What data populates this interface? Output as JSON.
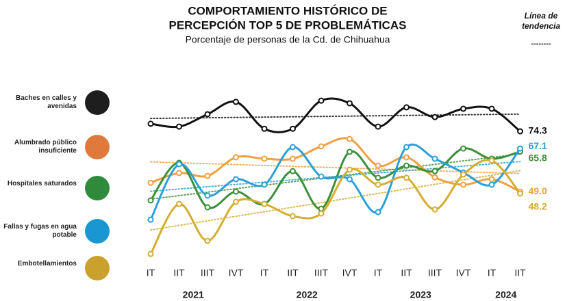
{
  "chart_data": {
    "type": "line",
    "title": [
      "COMPORTAMIENTO HISTÓRICO DE",
      "PERCEPCIÓN TOP 5 DE PROBLEMÁTICAS"
    ],
    "subtitle": "Porcentaje de personas de la Cd. de Chihuahua",
    "trend_label": "Línea de tendencia",
    "trend_symbol": "--------",
    "categories": [
      "IT",
      "IIT",
      "IIIT",
      "IVT",
      "IT",
      "IIT",
      "IIIT",
      "IVT",
      "IT",
      "IIT",
      "IIIT",
      "IVT",
      "IT",
      "IIT"
    ],
    "years": [
      "2021",
      "2022",
      "2023",
      "2024"
    ],
    "ylim": [
      20,
      90
    ],
    "trend_lines": true,
    "series": [
      {
        "name": "Baches en calles y avenidas",
        "color": "#111111",
        "icon_color": "#1e1e1e",
        "values": [
          77.5,
          76.3,
          81.5,
          86.7,
          75.4,
          75.4,
          87.2,
          86.1,
          76.3,
          84.4,
          80.3,
          83.8,
          83.8,
          74.3
        ],
        "value_labels": [
          null,
          null,
          null,
          null,
          null,
          null,
          null,
          null,
          null,
          null,
          null,
          null,
          null,
          "74.3"
        ]
      },
      {
        "name": "Alumbrado público insuficiente",
        "color": "#f0a040",
        "icon_color": "#df7a3c",
        "values": [
          52.7,
          56.8,
          55.6,
          63.4,
          62.8,
          62.8,
          68.0,
          71.1,
          59.9,
          63.4,
          55.0,
          51.9,
          54.2,
          49.0
        ],
        "value_labels": [
          null,
          null,
          null,
          null,
          null,
          null,
          null,
          null,
          null,
          null,
          null,
          null,
          null,
          "49.0"
        ]
      },
      {
        "name": "Hospitales saturados",
        "color": "#3a8f3a",
        "icon_color": "#2f8a3c",
        "values": [
          45.3,
          61.1,
          42.4,
          49.0,
          43.8,
          57.6,
          41.8,
          65.7,
          54.8,
          59.9,
          57.6,
          67.1,
          62.8,
          65.8
        ],
        "value_labels": [
          null,
          null,
          null,
          null,
          null,
          null,
          null,
          null,
          null,
          null,
          null,
          null,
          null,
          "65.8"
        ]
      },
      {
        "name": "Fallas y fugas en agua potable",
        "color": "#2aa0d8",
        "icon_color": "#1a96d2",
        "values": [
          37.2,
          60.5,
          47.3,
          54.2,
          51.9,
          67.7,
          55.3,
          54.2,
          40.4,
          67.7,
          62.8,
          57.0,
          51.9,
          67.1
        ],
        "value_labels": [
          null,
          null,
          null,
          null,
          null,
          null,
          null,
          null,
          null,
          null,
          null,
          null,
          null,
          "67.1"
        ]
      },
      {
        "name": "Embotellamientos",
        "color": "#d4ac2e",
        "icon_color": "#c9a12c",
        "values": [
          22.8,
          43.8,
          28.3,
          44.7,
          43.8,
          38.7,
          39.8,
          58.2,
          51.9,
          54.8,
          41.5,
          56.2,
          62.0,
          48.2
        ],
        "value_labels": [
          null,
          null,
          null,
          null,
          null,
          null,
          null,
          null,
          null,
          null,
          null,
          null,
          null,
          "48.2"
        ]
      }
    ]
  }
}
